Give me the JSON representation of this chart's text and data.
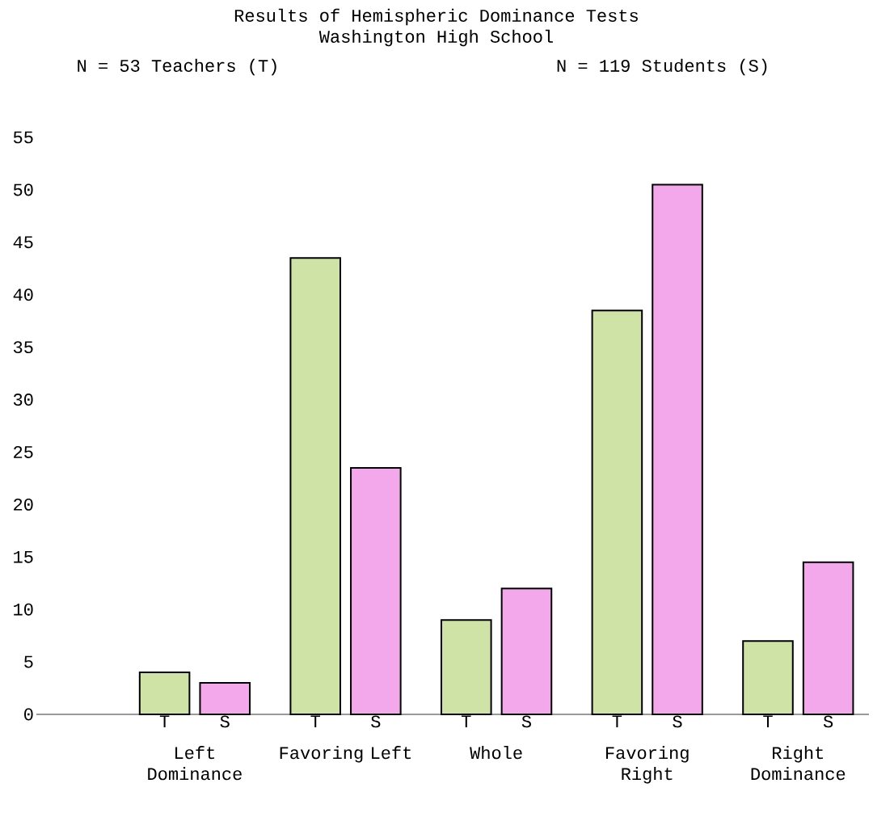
{
  "chart_data": {
    "type": "bar",
    "title": "Results of Hemispheric Dominance Tests",
    "subtitle": "Washington High School",
    "annotations": [
      "N = 53 Teachers (T)",
      "N = 119 Students (S)"
    ],
    "categories": [
      "Left Dominance",
      "Favoring Left",
      "Whole",
      "Favoring Right",
      "Right Dominance"
    ],
    "series": [
      {
        "name": "T",
        "color": "#cfe3a6",
        "values": [
          4,
          43.5,
          9,
          38.5,
          7
        ]
      },
      {
        "name": "S",
        "color": "#f2a8ea",
        "values": [
          3,
          23.5,
          12,
          50.5,
          14.5
        ]
      }
    ],
    "ylim": [
      0,
      55
    ],
    "yticks": [
      0,
      5,
      10,
      15,
      20,
      25,
      30,
      35,
      40,
      45,
      50,
      55
    ]
  }
}
